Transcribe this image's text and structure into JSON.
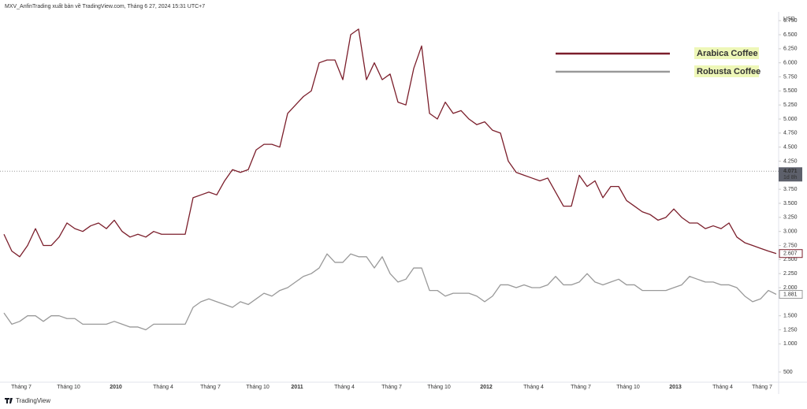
{
  "header": "MXV_AnfinTrading xuất bản về TradingView.com, Tháng 6 27, 2024 15:31 UTC+7",
  "footer": "TradingView",
  "chart_data": {
    "type": "line",
    "y_unit": "USD",
    "categories": [
      null,
      null,
      "Tháng 7",
      null,
      null,
      null,
      null,
      null,
      "Tháng 10",
      null,
      null,
      null,
      null,
      null,
      "2010",
      null,
      null,
      null,
      null,
      null,
      "Tháng 4",
      null,
      null,
      null,
      null,
      null,
      "Tháng 7",
      null,
      null,
      null,
      null,
      null,
      "Tháng 10",
      null,
      null,
      null,
      null,
      "2011",
      null,
      null,
      null,
      null,
      null,
      "Tháng 4",
      null,
      null,
      null,
      null,
      null,
      "Tháng 7",
      null,
      null,
      null,
      null,
      null,
      "Tháng 10",
      null,
      null,
      null,
      null,
      null,
      "2012",
      null,
      null,
      null,
      null,
      null,
      "Tháng 4",
      null,
      null,
      null,
      null,
      null,
      "Tháng 7",
      null,
      null,
      null,
      null,
      null,
      "Tháng 10",
      null,
      null,
      null,
      null,
      null,
      "2013",
      null,
      null,
      null,
      null,
      null,
      "Tháng 4",
      null,
      null,
      null,
      null,
      "Tháng 7",
      null,
      null
    ],
    "series": [
      {
        "name": "Arabica Coffee",
        "color": "#7b1e2b",
        "values": [
          2950,
          2650,
          2550,
          2750,
          3050,
          2750,
          2750,
          2900,
          3150,
          3050,
          3000,
          3100,
          3150,
          3050,
          3200,
          3000,
          2900,
          2950,
          2900,
          3000,
          2950,
          2950,
          2950,
          2950,
          3600,
          3650,
          3700,
          3650,
          3900,
          4100,
          4050,
          4100,
          4450,
          4550,
          4550,
          4500,
          5100,
          5250,
          5400,
          5500,
          6000,
          6050,
          6050,
          5700,
          6500,
          6600,
          5700,
          6000,
          5700,
          5800,
          5300,
          5250,
          5900,
          6300,
          5100,
          5000,
          5300,
          5100,
          5150,
          5000,
          4900,
          4950,
          4800,
          4750,
          4250,
          4050,
          4000,
          3950,
          3900,
          3950,
          3700,
          3450,
          3450,
          4000,
          3800,
          3900,
          3600,
          3800,
          3800,
          3550,
          3450,
          3350,
          3300,
          3200,
          3250,
          3400,
          3250,
          3150,
          3150,
          3050,
          3100,
          3050,
          3150,
          2900,
          2800,
          2750,
          2700,
          2650,
          2607
        ],
        "value_labels": [
          null,
          null,
          null,
          null,
          null,
          null,
          null,
          null,
          null,
          null,
          null,
          null,
          null,
          null,
          null,
          null,
          null,
          null,
          null,
          null,
          null,
          null,
          null,
          null,
          null,
          null,
          null,
          null,
          null,
          null,
          null,
          null,
          null,
          null,
          null,
          null,
          null,
          null,
          null,
          null,
          null,
          null,
          null,
          null,
          null,
          null,
          null,
          null,
          null,
          null,
          null,
          null,
          null,
          null,
          null,
          null,
          null,
          null,
          null,
          null,
          null,
          null,
          null,
          null,
          null,
          null,
          null,
          null,
          null,
          null,
          null,
          null,
          null,
          null,
          null,
          null,
          null,
          null,
          null,
          null,
          null,
          null,
          null,
          null,
          null,
          null,
          null,
          null,
          null,
          null,
          null,
          null,
          null,
          null,
          null,
          null,
          null,
          null,
          "2.607"
        ]
      },
      {
        "name": "Robusta Coffee",
        "color": "#999999",
        "values": [
          1550,
          1350,
          1400,
          1500,
          1500,
          1400,
          1500,
          1500,
          1450,
          1450,
          1350,
          1350,
          1350,
          1350,
          1400,
          1350,
          1300,
          1300,
          1250,
          1350,
          1350,
          1350,
          1350,
          1350,
          1650,
          1750,
          1800,
          1750,
          1700,
          1650,
          1750,
          1700,
          1800,
          1900,
          1850,
          1950,
          2000,
          2100,
          2200,
          2250,
          2350,
          2600,
          2450,
          2450,
          2600,
          2550,
          2550,
          2350,
          2550,
          2250,
          2100,
          2150,
          2350,
          2350,
          1950,
          1950,
          1850,
          1900,
          1900,
          1900,
          1850,
          1750,
          1850,
          2050,
          2050,
          2000,
          2050,
          2000,
          2000,
          2050,
          2200,
          2050,
          2050,
          2100,
          2250,
          2100,
          2050,
          2100,
          2150,
          2050,
          2050,
          1950,
          1950,
          1950,
          1950,
          2000,
          2050,
          2200,
          2150,
          2100,
          2100,
          2050,
          2050,
          2000,
          1850,
          1750,
          1800,
          1950,
          1881
        ],
        "value_labels": [
          null,
          null,
          null,
          null,
          null,
          null,
          null,
          null,
          null,
          null,
          null,
          null,
          null,
          null,
          null,
          null,
          null,
          null,
          null,
          null,
          null,
          null,
          null,
          null,
          null,
          null,
          null,
          null,
          null,
          null,
          null,
          null,
          null,
          null,
          null,
          null,
          null,
          null,
          null,
          null,
          null,
          null,
          null,
          null,
          null,
          null,
          null,
          null,
          null,
          null,
          null,
          null,
          null,
          null,
          null,
          null,
          null,
          null,
          null,
          null,
          null,
          null,
          null,
          null,
          null,
          null,
          null,
          null,
          null,
          null,
          null,
          null,
          null,
          null,
          null,
          null,
          null,
          null,
          null,
          null,
          null,
          null,
          null,
          null,
          null,
          null,
          null,
          null,
          null,
          null,
          null,
          null,
          null,
          null,
          null,
          null,
          null,
          null,
          "1.881"
        ]
      }
    ],
    "price_line": {
      "value": 4071,
      "label": "4.071",
      "sublabel": "1d 8h"
    },
    "ylim": [
      318,
      6907
    ],
    "yticks": [
      500,
      {
        "value": 1000,
        "label": "1.000"
      },
      {
        "value": 1250,
        "label": "1.250"
      },
      {
        "value": 1500,
        "label": "1.500"
      },
      {
        "value": 2000,
        "label": "2.000"
      },
      {
        "value": 2250,
        "label": "2.250"
      },
      {
        "value": 2500,
        "label": "2.500"
      },
      {
        "value": 2750,
        "label": "2.750"
      },
      {
        "value": 3000,
        "label": "3.000"
      },
      {
        "value": 3250,
        "label": "3.250"
      },
      {
        "value": 3500,
        "label": "3.500"
      },
      {
        "value": 3750,
        "label": "3.750"
      },
      {
        "value": 4250,
        "label": "4.250"
      },
      {
        "value": 4500,
        "label": "4.500"
      },
      {
        "value": 4750,
        "label": "4.750"
      },
      {
        "value": 5000,
        "label": "5.000"
      },
      {
        "value": 5250,
        "label": "5.250"
      },
      {
        "value": 5500,
        "label": "5.500"
      },
      {
        "value": 5750,
        "label": "5.750"
      },
      {
        "value": 6000,
        "label": "6.000"
      },
      {
        "value": 6250,
        "label": "6.250"
      },
      {
        "value": 6500,
        "label": "6.500"
      },
      {
        "value": 6750,
        "label": "6.750"
      }
    ],
    "grid": false
  }
}
